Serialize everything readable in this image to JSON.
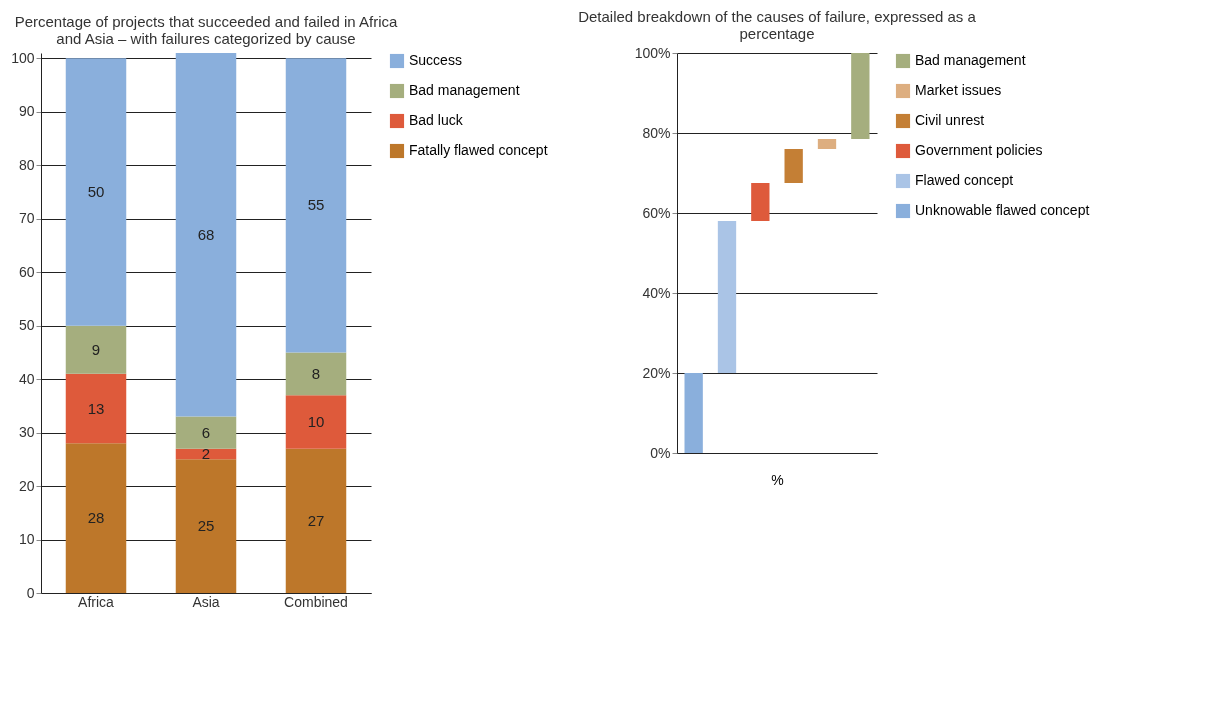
{
  "chart_data": [
    {
      "type": "bar",
      "title": "Percentage of projects that succeeded and failed in Africa and Asia – with failures categorized by cause",
      "categories": [
        "Africa",
        "Asia",
        "Combined"
      ],
      "stacked": true,
      "data_labels": true,
      "ylim": [
        0,
        101
      ],
      "yticks": [
        0,
        10,
        20,
        30,
        40,
        50,
        60,
        70,
        80,
        90,
        100
      ],
      "grid": "y",
      "legend": "right",
      "series": [
        {
          "name": "Fatally flawed concept",
          "color": "#bd772a",
          "values": [
            28,
            25,
            27
          ]
        },
        {
          "name": "Bad luck",
          "color": "#de5a3b",
          "values": [
            13,
            2,
            10
          ]
        },
        {
          "name": "Bad management",
          "color": "#a5ae7e",
          "values": [
            9,
            6,
            8
          ]
        },
        {
          "name": "Success",
          "color": "#8aafdc",
          "values": [
            50,
            68,
            55
          ]
        }
      ]
    },
    {
      "type": "bar",
      "title": "Detailed breakdown of the causes of failure, expressed as a percentage",
      "xlabel": "%",
      "categories": [
        null,
        null,
        null,
        null,
        null,
        null
      ],
      "ylim": [
        0,
        100
      ],
      "yticks": [
        {
          "value": 0,
          "label": "0%"
        },
        {
          "value": 20,
          "label": "20%"
        },
        {
          "value": 40,
          "label": "40%"
        },
        {
          "value": 60,
          "label": "60%"
        },
        {
          "value": 80,
          "label": "80%"
        },
        {
          "value": 100,
          "label": "100%"
        }
      ],
      "grid": "y",
      "legend": "right",
      "series": [
        {
          "name": "Bad management",
          "color": "#a5ae7e",
          "values": [
            null,
            null,
            null,
            null,
            null,
            21.5
          ],
          "base": [
            null,
            null,
            null,
            null,
            null,
            78.5
          ]
        },
        {
          "name": "Market issues",
          "color": "#ddae80",
          "values": [
            null,
            null,
            null,
            null,
            2.5,
            null
          ],
          "base": [
            null,
            null,
            null,
            null,
            76,
            null
          ]
        },
        {
          "name": "Civil unrest",
          "color": "#c47f35",
          "values": [
            null,
            null,
            null,
            8.5,
            null,
            null
          ],
          "base": [
            null,
            null,
            null,
            67.5,
            null,
            null
          ]
        },
        {
          "name": "Government policies",
          "color": "#de5a3b",
          "values": [
            null,
            null,
            9.5,
            null,
            null,
            null
          ],
          "base": [
            null,
            null,
            58,
            null,
            null,
            null
          ]
        },
        {
          "name": "Flawed concept",
          "color": "#aac4e6",
          "values": [
            null,
            38,
            null,
            null,
            null,
            null
          ],
          "base": [
            null,
            20,
            null,
            null,
            null,
            null
          ]
        },
        {
          "name": "Unknowable flawed concept",
          "color": "#8aafdc",
          "values": [
            20,
            null,
            null,
            null,
            null,
            null
          ],
          "base": [
            0,
            null,
            null,
            null,
            null,
            null
          ]
        }
      ]
    }
  ]
}
